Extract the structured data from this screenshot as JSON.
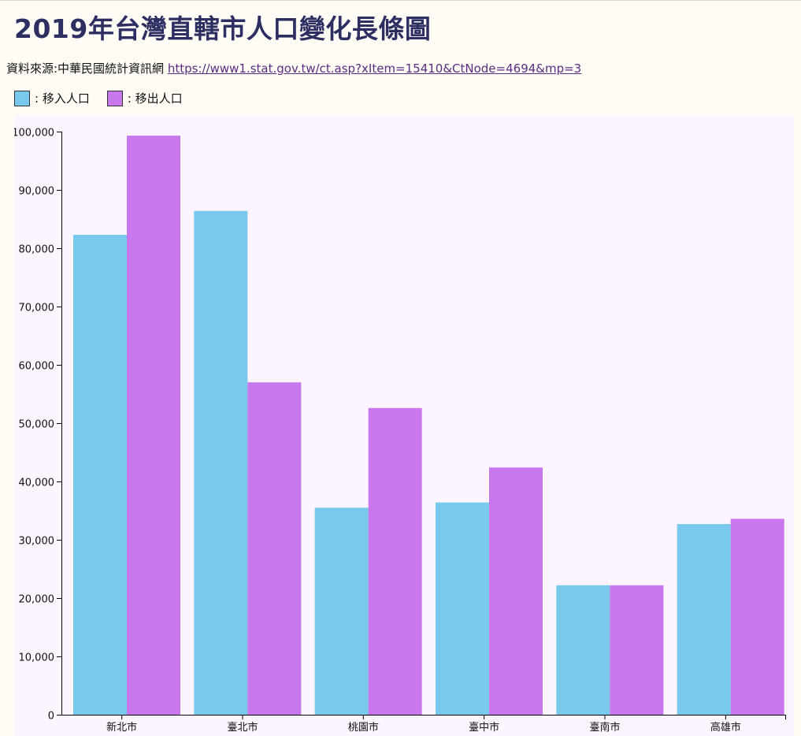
{
  "title": "2019年台灣直轄市人口變化長條圖",
  "source": {
    "label": "資料來源:中華民國統計資訊網",
    "link_text": "https://www1.stat.gov.tw/ct.asp?xItem=15410&CtNode=4694&mp=3"
  },
  "legend": [
    {
      "label": ": 移入人口",
      "color": "#78c9ec"
    },
    {
      "label": ": 移出人口",
      "color": "#c977ec"
    }
  ],
  "colors": {
    "plot_background": "#fcf4ff",
    "page_background": "#fffcf5",
    "title": "#2d2f63"
  },
  "chart_data": {
    "type": "bar",
    "title": "2019年台灣直轄市人口變化長條圖",
    "xlabel": "",
    "ylabel": "",
    "categories": [
      "新北市",
      "臺北市",
      "桃園市",
      "臺中市",
      "臺南市",
      "高雄市"
    ],
    "series": [
      {
        "name": "移入人口",
        "color": "#78c9ec",
        "values": [
          82300,
          86400,
          35500,
          36400,
          22200,
          32700
        ]
      },
      {
        "name": "移出人口",
        "color": "#c977ec",
        "values": [
          99300,
          57000,
          52600,
          42400,
          22200,
          33600
        ]
      }
    ],
    "ylim": [
      0,
      100000
    ],
    "yticks": [
      0,
      10000,
      20000,
      30000,
      40000,
      50000,
      60000,
      70000,
      80000,
      90000,
      100000
    ],
    "ytick_labels": [
      "0",
      "10,000",
      "20,000",
      "30,000",
      "40,000",
      "50,000",
      "60,000",
      "70,000",
      "80,000",
      "90,000",
      "100,000"
    ],
    "grid": false,
    "legend_position": "top-left"
  }
}
